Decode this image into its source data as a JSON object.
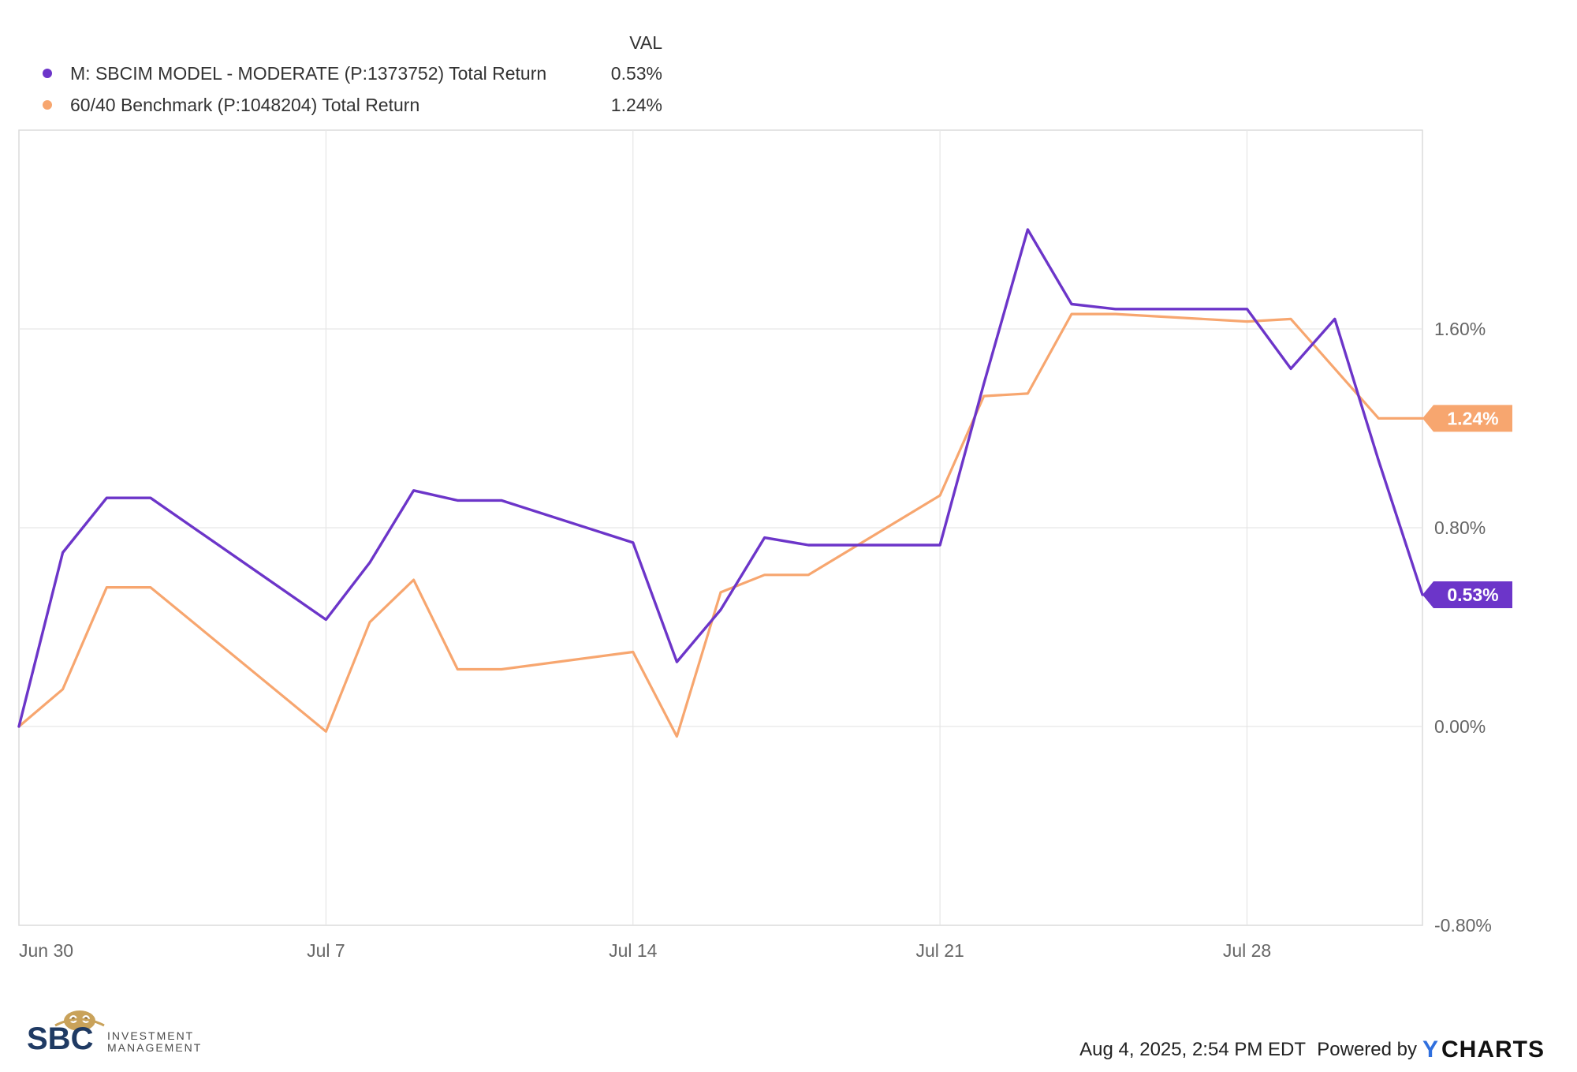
{
  "legend": {
    "value_header": "VAL"
  },
  "chart_data": {
    "type": "line",
    "xlabel": "",
    "ylabel": "",
    "ylim": [
      -0.8,
      2.4
    ],
    "y_ticks": [
      -0.8,
      0.0,
      0.8,
      1.6
    ],
    "y_tick_labels": [
      "-0.80%",
      "0.00%",
      "0.80%",
      "1.60%"
    ],
    "x_tick_labels": [
      "Jun 30",
      "Jul 7",
      "Jul 14",
      "Jul 21",
      "Jul 28"
    ],
    "x_tick_dates": [
      "2025-06-30",
      "2025-07-07",
      "2025-07-14",
      "2025-07-21",
      "2025-07-28"
    ],
    "grid": true,
    "legend_position": "top-left",
    "dates": [
      "2025-06-30",
      "2025-07-01",
      "2025-07-02",
      "2025-07-03",
      "2025-07-07",
      "2025-07-08",
      "2025-07-09",
      "2025-07-10",
      "2025-07-11",
      "2025-07-14",
      "2025-07-15",
      "2025-07-16",
      "2025-07-17",
      "2025-07-18",
      "2025-07-21",
      "2025-07-22",
      "2025-07-23",
      "2025-07-24",
      "2025-07-25",
      "2025-07-28",
      "2025-07-29",
      "2025-07-30",
      "2025-07-31",
      "2025-08-01"
    ],
    "series": [
      {
        "name": "M: SBCIM MODEL - MODERATE (P:1373752) Total Return",
        "color": "#6c35c9",
        "last_value_label": "0.53%",
        "values": [
          0.0,
          0.7,
          0.92,
          0.92,
          0.43,
          0.66,
          0.95,
          0.91,
          0.91,
          0.74,
          0.26,
          0.47,
          0.76,
          0.73,
          0.73,
          1.38,
          2.0,
          1.7,
          1.68,
          1.68,
          1.44,
          1.64,
          1.07,
          0.53
        ]
      },
      {
        "name": "60/40 Benchmark (P:1048204) Total Return",
        "color": "#f7a66f",
        "last_value_label": "1.24%",
        "values": [
          0.0,
          0.15,
          0.56,
          0.56,
          -0.02,
          0.42,
          0.59,
          0.23,
          0.23,
          0.3,
          -0.04,
          0.54,
          0.61,
          0.61,
          0.93,
          1.33,
          1.34,
          1.66,
          1.66,
          1.63,
          1.64,
          1.44,
          1.24,
          1.24
        ]
      }
    ]
  },
  "footer": {
    "timestamp": "Aug 4, 2025, 2:54 PM EDT",
    "powered_by": "Powered by",
    "brand_y": "Y",
    "brand_rest": "CHARTS"
  },
  "logo": {
    "letters": "SBC",
    "line1": "INVESTMENT",
    "line2": "MANAGEMENT"
  }
}
